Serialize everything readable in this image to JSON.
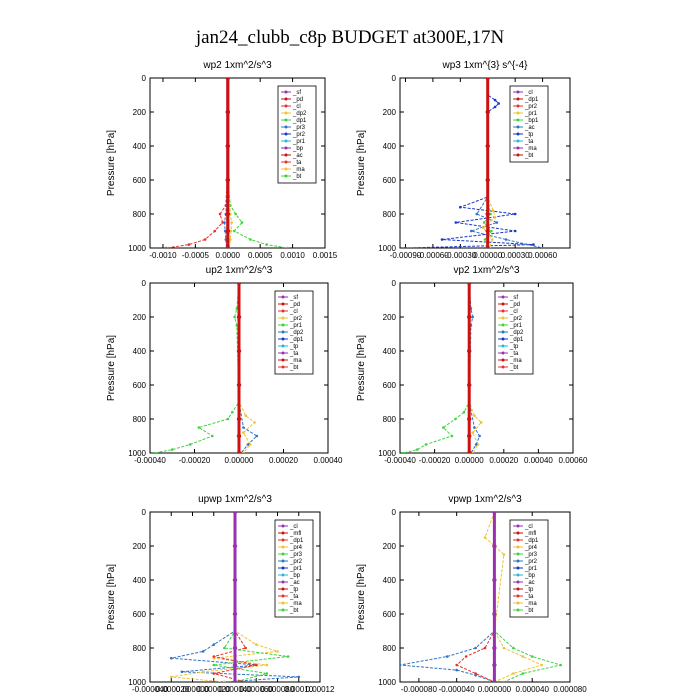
{
  "figure": {
    "title": "jan24_clubb_c8p  BUDGET at300E,17N"
  },
  "chart_data": [
    {
      "type": "line",
      "title": "wp2   1xm^2/s^3",
      "ylabel": "Pressure [hPa]",
      "xlim": [
        -0.0012,
        0.0015
      ],
      "ylim": [
        1000,
        0
      ],
      "xticks": [
        -0.001,
        -0.0005,
        0.0,
        0.0005,
        0.001,
        0.0015
      ],
      "xtick_labels": [
        "-0.0010",
        "-0.0005",
        "0.0000",
        "0.0005",
        "0.0010",
        "0.0015"
      ],
      "yticks": [
        0,
        200,
        400,
        600,
        800,
        1000
      ],
      "legend": [
        "_sf",
        "_pd",
        "_cl",
        "_dp2",
        "_dp1",
        "_pr3",
        "_pr2",
        "_pr1",
        "_bp",
        "_ac",
        "_ta",
        "_ma",
        "_bt"
      ],
      "series": [
        {
          "name": "_dp1",
          "color": "#e8302a",
          "levels": [
            0,
            200,
            400,
            600,
            750,
            800,
            850,
            900,
            950,
            980,
            1000
          ],
          "values": [
            0,
            0,
            0,
            -1e-05,
            -3e-05,
            -0.00012,
            -8e-05,
            -0.0002,
            -0.00035,
            -0.0006,
            -0.00095
          ]
        },
        {
          "name": "_bp",
          "color": "#3fd43f",
          "levels": [
            0,
            200,
            400,
            600,
            750,
            800,
            850,
            900,
            950,
            980,
            1000
          ],
          "values": [
            0,
            1e-05,
            0,
            0,
            4e-05,
            0.00012,
            0.00022,
            0.0001,
            0.00035,
            0.0006,
            0.00092
          ]
        },
        {
          "name": "_pr1",
          "color": "#f2c233",
          "levels": [
            0,
            600,
            800,
            850,
            900,
            950,
            1000
          ],
          "values": [
            0,
            0,
            4e-05,
            6e-05,
            5e-05,
            4e-05,
            2e-05
          ]
        },
        {
          "name": "_ac",
          "color": "#2f74c4",
          "levels": [
            0,
            600,
            800,
            850,
            900,
            950,
            1000
          ],
          "values": [
            0,
            0,
            -3e-05,
            -5e-05,
            -4e-05,
            -3e-05,
            -2e-05
          ]
        },
        {
          "name": "_sf",
          "color": "#9a2fb0",
          "levels": [
            0,
            200,
            400,
            600,
            800,
            900,
            1000
          ],
          "values": [
            0,
            0,
            0,
            0,
            0,
            0,
            0
          ]
        },
        {
          "name": "_cl",
          "color": "#cc1111",
          "levels": [
            0,
            200,
            400,
            600,
            800,
            900,
            1000
          ],
          "values": [
            0,
            0,
            0,
            0,
            0,
            0,
            0
          ]
        }
      ]
    },
    {
      "type": "line",
      "title": "wp3   1xm^{3} s^{-4}",
      "ylabel": "Pressure [hPa]",
      "xlim": [
        -0.00096,
        0.0009
      ],
      "ylim": [
        1000,
        0
      ],
      "xticks": [
        -0.0009,
        -0.0006,
        -0.0003,
        0.0,
        0.0003,
        0.0006
      ],
      "xtick_labels": [
        "-0.00090",
        "-0.00060",
        "-0.00030",
        "0.00000",
        "0.00030",
        "0.00060"
      ],
      "yticks": [
        0,
        200,
        400,
        600,
        800,
        1000
      ],
      "legend": [
        "_cl",
        "_dp1",
        "_pr2",
        "_pr1",
        "_bp1",
        "_ac",
        "_tp",
        "_ta",
        "_ma",
        "_bt"
      ],
      "series": [
        {
          "name": "_tp",
          "color": "#1a35c9",
          "levels": [
            0,
            100,
            130,
            150,
            170,
            200,
            700,
            760,
            800,
            850,
            900,
            950,
            980,
            1000
          ],
          "values": [
            0,
            0,
            8e-05,
            0.00012,
            8e-05,
            0,
            0,
            -0.0003,
            0.0003,
            -0.00035,
            0.0003,
            -0.0005,
            0.0005,
            -0.0009
          ]
        },
        {
          "name": "_ac",
          "color": "#2f74c4",
          "levels": [
            0,
            700,
            800,
            850,
            900,
            950,
            1000
          ],
          "values": [
            0,
            0,
            -0.00012,
            0.0001,
            -0.00018,
            0.0002,
            0.0006
          ]
        },
        {
          "name": "_pr1",
          "color": "#f2c233",
          "levels": [
            0,
            700,
            780,
            820,
            880,
            950,
            1000
          ],
          "values": [
            0,
            0,
            6e-05,
            8e-05,
            -5e-05,
            5e-05,
            2e-05
          ]
        },
        {
          "name": "_bp1",
          "color": "#3fd43f",
          "levels": [
            0,
            700,
            800,
            850,
            900,
            950,
            1000
          ],
          "values": [
            0,
            0,
            3e-05,
            -4e-05,
            4e-05,
            -3e-05,
            1e-05
          ]
        },
        {
          "name": "_cl",
          "color": "#cc1111",
          "levels": [
            0,
            200,
            400,
            600,
            800,
            900,
            1000
          ],
          "values": [
            0,
            0,
            0,
            0,
            0,
            0,
            0
          ]
        }
      ]
    },
    {
      "type": "line",
      "title": "up2   1xm^2/s^3",
      "ylabel": "Pressure [hPa]",
      "xlim": [
        -0.0004,
        0.0004
      ],
      "ylim": [
        1000,
        0
      ],
      "xticks": [
        -0.0004,
        -0.0002,
        0.0,
        0.0002,
        0.0004
      ],
      "xtick_labels": [
        "-0.00040",
        "-0.00020",
        "0.00000",
        "0.00020",
        "0.00040"
      ],
      "yticks": [
        0,
        200,
        400,
        600,
        800,
        1000
      ],
      "legend": [
        "_sf",
        "_pd",
        "_cl",
        "_pr2",
        "_pr1",
        "_dp2",
        "_dp1",
        "_tp",
        "_ta",
        "_ma",
        "_bt"
      ],
      "series": [
        {
          "name": "_dp1",
          "color": "#3fd43f",
          "levels": [
            0,
            150,
            200,
            250,
            700,
            760,
            800,
            850,
            900,
            950,
            980,
            1000
          ],
          "values": [
            0,
            -1e-05,
            -2e-05,
            -1e-05,
            0,
            -3e-05,
            -5e-05,
            -0.00018,
            -0.00012,
            -0.00022,
            -0.0003,
            -0.00038
          ]
        },
        {
          "name": "_pr1",
          "color": "#f2c233",
          "levels": [
            0,
            700,
            780,
            820,
            880,
            950,
            1000
          ],
          "values": [
            0,
            0,
            3e-05,
            7e-05,
            2e-05,
            5e-05,
            2e-05
          ]
        },
        {
          "name": "_tp",
          "color": "#2f74c4",
          "levels": [
            0,
            700,
            850,
            900,
            950,
            1000
          ],
          "values": [
            0,
            0,
            2e-05,
            8e-05,
            4e-05,
            1e-05
          ]
        },
        {
          "name": "_cl",
          "color": "#cc1111",
          "levels": [
            0,
            200,
            400,
            600,
            800,
            900,
            1000
          ],
          "values": [
            0,
            0,
            0,
            0,
            0,
            0,
            0
          ]
        }
      ]
    },
    {
      "type": "line",
      "title": "vp2   1xm^2/s^3",
      "ylabel": "Pressure [hPa]",
      "xlim": [
        -0.0004,
        0.0006
      ],
      "ylim": [
        1000,
        0
      ],
      "xticks": [
        -0.0004,
        -0.0002,
        0.0,
        0.0002,
        0.0004,
        0.0006
      ],
      "xtick_labels": [
        "-0.00040",
        "-0.00020",
        "0.00000",
        "0.00020",
        "0.00040",
        "0.00060"
      ],
      "yticks": [
        0,
        200,
        400,
        600,
        800,
        1000
      ],
      "legend": [
        "_sf",
        "_pd",
        "_cl",
        "_pr2",
        "_pr1",
        "_dp2",
        "_dp1",
        "_tp",
        "_ta",
        "_ma",
        "_bt"
      ],
      "series": [
        {
          "name": "_dp1",
          "color": "#3fd43f",
          "levels": [
            0,
            700,
            760,
            800,
            850,
            900,
            950,
            980,
            1000
          ],
          "values": [
            0,
            0,
            -3e-05,
            -8e-05,
            -0.00015,
            -0.0001,
            -0.00025,
            -0.0003,
            -0.00038
          ]
        },
        {
          "name": "_pr1",
          "color": "#f2c233",
          "levels": [
            0,
            700,
            780,
            820,
            880,
            950,
            1000
          ],
          "values": [
            0,
            0,
            3e-05,
            7e-05,
            2e-05,
            5e-05,
            2e-05
          ]
        },
        {
          "name": "_tp",
          "color": "#2f74c4",
          "levels": [
            0,
            150,
            200,
            250,
            700,
            850,
            900,
            950,
            1000
          ],
          "values": [
            0,
            1e-05,
            2e-05,
            1e-05,
            0,
            3e-05,
            6e-05,
            4e-05,
            1e-05
          ]
        },
        {
          "name": "_cl",
          "color": "#cc1111",
          "levels": [
            0,
            200,
            400,
            600,
            800,
            900,
            1000
          ],
          "values": [
            0,
            0,
            0,
            0,
            0,
            0,
            0
          ]
        }
      ]
    },
    {
      "type": "line",
      "title": "upwp   1xm^2/s^3",
      "ylabel": "Pressure [hPa]",
      "xlim": [
        -4e-05,
        0.00012
      ],
      "ylim": [
        1000,
        0
      ],
      "xticks": [
        -4e-05,
        -2e-05,
        0.0,
        2e-05,
        4e-05,
        6e-05,
        8e-05,
        0.0001,
        0.00012
      ],
      "xtick_labels": [
        "-0.000040",
        "-0.000020",
        "0.000000",
        "0.000020",
        "0.000040",
        "0.000060",
        "0.000080",
        "0.00010",
        "0.00012"
      ],
      "yticks": [
        0,
        200,
        400,
        600,
        800,
        1000
      ],
      "legend": [
        "_cl",
        "_mfl",
        "_dp1",
        "_pr4",
        "_pr3",
        "_pr2",
        "_pr1",
        "_bp",
        "_ac",
        "_tp",
        "_ta",
        "_ma",
        "_bt"
      ],
      "series": [
        {
          "name": "_tp",
          "color": "#2f74c4",
          "levels": [
            0,
            700,
            780,
            820,
            860,
            900,
            940,
            970,
            1000
          ],
          "values": [
            4e-05,
            4e-05,
            2e-05,
            1e-05,
            -2e-05,
            6e-05,
            -1e-05,
            0.0001,
            3e-05
          ]
        },
        {
          "name": "_pr1",
          "color": "#f2c233",
          "levels": [
            0,
            700,
            780,
            820,
            860,
            900,
            940,
            970,
            1000
          ],
          "values": [
            4e-05,
            4e-05,
            6e-05,
            8e-05,
            2e-05,
            7e-05,
            1e-05,
            -2e-05,
            3e-05
          ]
        },
        {
          "name": "_bp",
          "color": "#3fd43f",
          "levels": [
            0,
            700,
            800,
            850,
            900,
            950,
            1000
          ],
          "values": [
            4e-05,
            4e-05,
            3e-05,
            9e-05,
            2e-05,
            7e-05,
            4e-05
          ]
        },
        {
          "name": "_dp1",
          "color": "#e8302a",
          "levels": [
            0,
            700,
            800,
            850,
            900,
            950,
            1000
          ],
          "values": [
            4e-05,
            4e-05,
            5e-05,
            2e-05,
            6e-05,
            2e-05,
            5e-05
          ]
        },
        {
          "name": "_cl",
          "color": "#9a2fb0",
          "levels": [
            0,
            200,
            400,
            600,
            800,
            900,
            1000
          ],
          "values": [
            4e-05,
            4e-05,
            4e-05,
            4e-05,
            4e-05,
            4e-05,
            4e-05
          ]
        }
      ]
    },
    {
      "type": "line",
      "title": "vpwp   1xm^2/s^3",
      "ylabel": "Pressure [hPa]",
      "xlim": [
        -0.0001,
        8e-05
      ],
      "ylim": [
        1000,
        0
      ],
      "xticks": [
        -8e-05,
        -4e-05,
        0.0,
        4e-05,
        8e-05
      ],
      "xtick_labels": [
        "-0.000080",
        "-0.000040",
        "0.000000",
        "0.000040",
        "0.000080"
      ],
      "yticks": [
        0,
        200,
        400,
        600,
        800,
        1000
      ],
      "legend": [
        "_cl",
        "_mfl",
        "_dp1",
        "_pr4",
        "_pr3",
        "_pr2",
        "_pr1",
        "_bp",
        "_ac",
        "_tp",
        "_ta",
        "_ma",
        "_bt"
      ],
      "series": [
        {
          "name": "_tp",
          "color": "#2f74c4",
          "levels": [
            0,
            700,
            800,
            850,
            900,
            930,
            960,
            1000
          ],
          "values": [
            0,
            0,
            -2e-05,
            -5e-05,
            -0.0001,
            -4e-05,
            -2e-05,
            0
          ]
        },
        {
          "name": "_bp",
          "color": "#3fd43f",
          "levels": [
            0,
            700,
            800,
            850,
            900,
            950,
            1000
          ],
          "values": [
            0,
            0,
            2e-05,
            4e-05,
            7e-05,
            3e-05,
            1e-05
          ]
        },
        {
          "name": "_pr1",
          "color": "#f2c233",
          "levels": [
            0,
            150,
            200,
            250,
            700,
            800,
            850,
            900,
            950,
            1000
          ],
          "values": [
            0,
            -1e-05,
            0,
            1e-05,
            0,
            1e-05,
            3e-05,
            5e-05,
            2e-05,
            0
          ]
        },
        {
          "name": "_dp1",
          "color": "#e8302a",
          "levels": [
            0,
            700,
            800,
            850,
            900,
            950,
            1000
          ],
          "values": [
            0,
            0,
            -1e-05,
            -3e-05,
            -4e-05,
            -2e-05,
            0
          ]
        },
        {
          "name": "_cl",
          "color": "#9a2fb0",
          "levels": [
            0,
            200,
            400,
            600,
            800,
            900,
            1000
          ],
          "values": [
            0,
            0,
            0,
            0,
            0,
            0,
            0
          ]
        }
      ]
    }
  ]
}
